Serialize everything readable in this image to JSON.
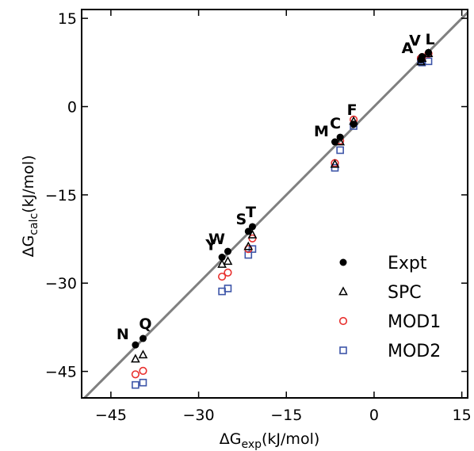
{
  "chart_data": {
    "type": "scatter",
    "xlabel": {
      "prefix": "ΔG",
      "sub": "exp",
      "suffix": "(kJ/mol)"
    },
    "ylabel": {
      "prefix": "ΔG",
      "sub": "calc",
      "suffix": "(kJ/mol)"
    },
    "xlim": [
      -50,
      16
    ],
    "ylim": [
      -49.5,
      16.5
    ],
    "x_ticks": [
      -45,
      -30,
      -15,
      0,
      15
    ],
    "y_ticks": [
      -45,
      -30,
      -15,
      0,
      15
    ],
    "grid": false,
    "legend_position": "bottom-right",
    "reference_line": {
      "from": [
        -50,
        -50
      ],
      "to": [
        16,
        16
      ],
      "color": "#808080"
    },
    "series": [
      {
        "name": "Expt",
        "marker": "filled-circle",
        "color": "#000000",
        "points": [
          {
            "label": "L",
            "x": 9.3,
            "y": 9.2
          },
          {
            "label": "V",
            "x": 8.2,
            "y": 8.5
          },
          {
            "label": "A",
            "x": 8.0,
            "y": 8.0
          },
          {
            "label": "F",
            "x": -3.5,
            "y": -3.0
          },
          {
            "label": "C",
            "x": -5.8,
            "y": -5.2
          },
          {
            "label": "M",
            "x": -6.7,
            "y": -6.0
          },
          {
            "label": "T",
            "x": -20.8,
            "y": -20.4
          },
          {
            "label": "S",
            "x": -21.5,
            "y": -21.2
          },
          {
            "label": "W",
            "x": -25.0,
            "y": -24.6
          },
          {
            "label": "Y",
            "x": -26.0,
            "y": -25.6
          },
          {
            "label": "Q",
            "x": -39.5,
            "y": -39.4
          },
          {
            "label": "N",
            "x": -40.8,
            "y": -40.5
          }
        ]
      },
      {
        "name": "SPC",
        "marker": "open-triangle",
        "color": "#000000",
        "points": [
          {
            "x": 9.3,
            "y": 9.0
          },
          {
            "x": 8.2,
            "y": 8.2
          },
          {
            "x": 8.0,
            "y": 7.6
          },
          {
            "x": -3.5,
            "y": -2.5
          },
          {
            "x": -5.8,
            "y": -6.0
          },
          {
            "x": -6.7,
            "y": -9.8
          },
          {
            "x": -20.8,
            "y": -21.8
          },
          {
            "x": -21.5,
            "y": -23.8
          },
          {
            "x": -25.0,
            "y": -26.3
          },
          {
            "x": -26.0,
            "y": -26.8
          },
          {
            "x": -39.5,
            "y": -42.2
          },
          {
            "x": -40.8,
            "y": -42.9
          }
        ]
      },
      {
        "name": "MOD1",
        "marker": "open-circle",
        "color": "#e8302e",
        "points": [
          {
            "x": 9.3,
            "y": 9.0
          },
          {
            "x": 8.2,
            "y": 8.4
          },
          {
            "x": 8.0,
            "y": 8.2
          },
          {
            "x": -3.5,
            "y": -2.2
          },
          {
            "x": -5.8,
            "y": -5.8
          },
          {
            "x": -6.7,
            "y": -9.6
          },
          {
            "x": -20.8,
            "y": -22.4
          },
          {
            "x": -21.5,
            "y": -24.2
          },
          {
            "x": -25.0,
            "y": -28.2
          },
          {
            "x": -26.0,
            "y": -28.9
          },
          {
            "x": -39.5,
            "y": -44.9
          },
          {
            "x": -40.8,
            "y": -45.5
          }
        ]
      },
      {
        "name": "MOD2",
        "marker": "open-square",
        "color": "#3d55a8",
        "points": [
          {
            "x": 9.3,
            "y": 7.7
          },
          {
            "x": 8.2,
            "y": 7.5
          },
          {
            "x": 8.0,
            "y": 7.9
          },
          {
            "x": -3.5,
            "y": -3.3
          },
          {
            "x": -5.8,
            "y": -7.4
          },
          {
            "x": -6.7,
            "y": -10.4
          },
          {
            "x": -20.8,
            "y": -24.2
          },
          {
            "x": -21.5,
            "y": -25.2
          },
          {
            "x": -25.0,
            "y": -30.9
          },
          {
            "x": -26.0,
            "y": -31.4
          },
          {
            "x": -39.5,
            "y": -46.9
          },
          {
            "x": -40.8,
            "y": -47.3
          }
        ]
      }
    ]
  }
}
